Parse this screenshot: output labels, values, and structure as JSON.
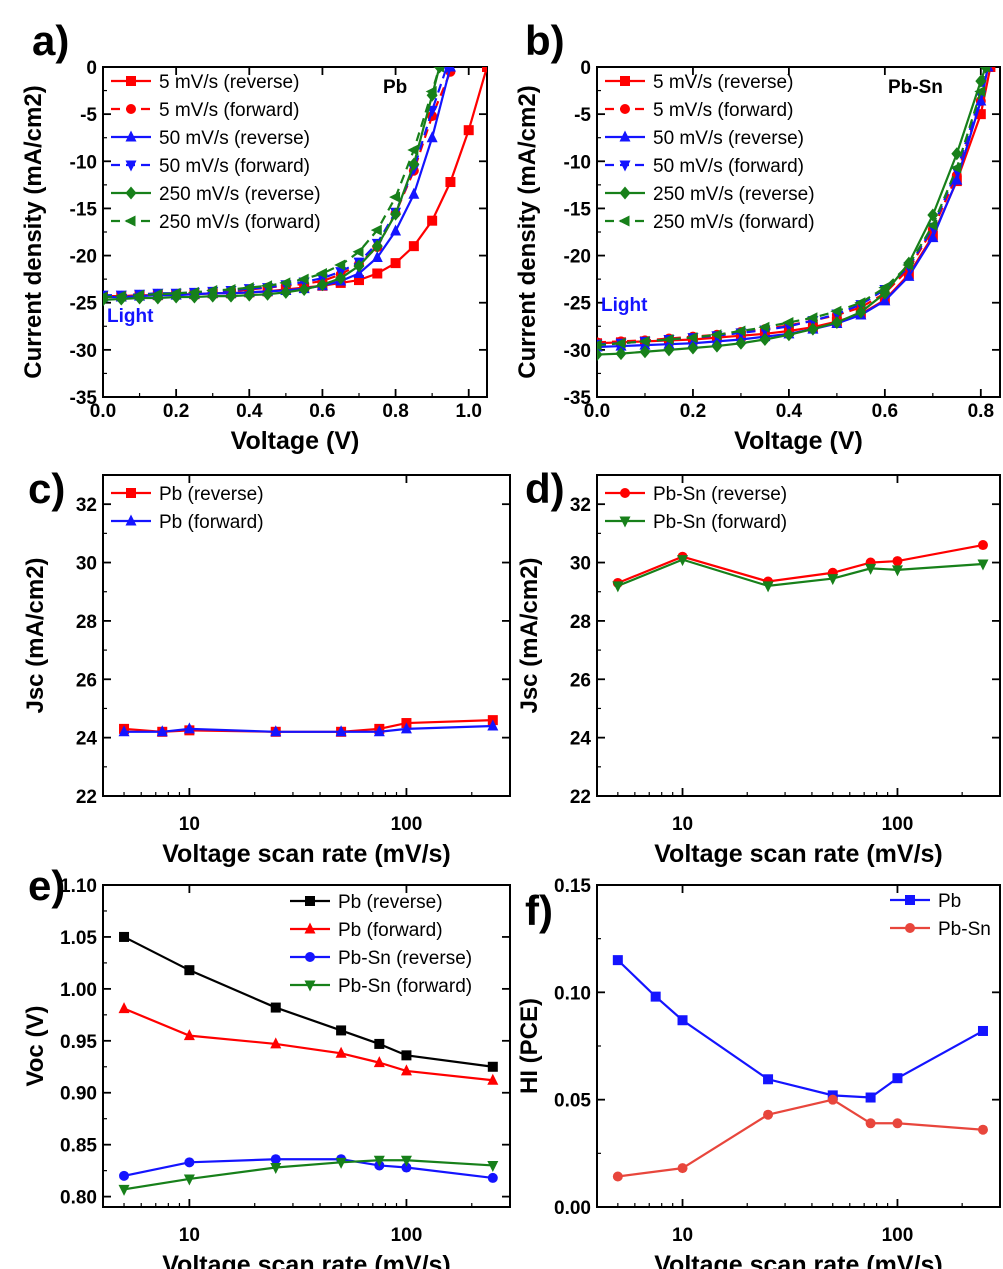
{
  "colors": {
    "red": "#ff0000",
    "blue": "#1414ff",
    "green": "#17801a",
    "black": "#000000",
    "salmon": "#e8463c"
  },
  "chart_data": [
    {
      "panel": "a)",
      "type": "line",
      "xscale": "linear",
      "xlim": [
        0,
        1.05
      ],
      "ylim": [
        -35,
        0
      ],
      "xticks": [
        0.0,
        0.2,
        0.4,
        0.6,
        0.8,
        1.0
      ],
      "xtick_labels": [
        "0.0",
        "0.2",
        "0.4",
        "0.6",
        "0.8",
        "1.0"
      ],
      "yticks": [
        -35,
        -30,
        -25,
        -20,
        -15,
        -10,
        -5,
        0
      ],
      "ytick_labels": [
        "-35",
        "-30",
        "-25",
        "-20",
        "-15",
        "-10",
        "-5",
        "0"
      ],
      "xlabel": "Voltage (V)",
      "ylabel": "Current density (mA/cm2)",
      "annotations": [
        {
          "text": "Pb",
          "color": "black"
        },
        {
          "text": "Light",
          "color": "blue"
        }
      ],
      "legend_position": "top-left",
      "series": [
        {
          "name": "5 mV/s (reverse)",
          "color": "red",
          "dash": false,
          "marker": "square",
          "x": [
            0,
            0.05,
            0.1,
            0.15,
            0.2,
            0.25,
            0.3,
            0.35,
            0.4,
            0.45,
            0.5,
            0.55,
            0.6,
            0.65,
            0.7,
            0.75,
            0.8,
            0.85,
            0.9,
            0.95,
            1.0,
            1.05
          ],
          "y": [
            -24.3,
            -24.3,
            -24.2,
            -24.2,
            -24.1,
            -24.1,
            -24.0,
            -24.0,
            -23.9,
            -23.8,
            -23.6,
            -23.4,
            -23.2,
            -22.9,
            -22.6,
            -21.9,
            -20.8,
            -19.0,
            -16.3,
            -12.2,
            -6.7,
            0
          ]
        },
        {
          "name": "5 mV/s (forward)",
          "color": "red",
          "dash": true,
          "marker": "circle",
          "x": [
            0,
            0.05,
            0.1,
            0.15,
            0.2,
            0.25,
            0.3,
            0.35,
            0.4,
            0.45,
            0.5,
            0.55,
            0.6,
            0.65,
            0.7,
            0.75,
            0.8,
            0.85,
            0.9,
            0.95
          ],
          "y": [
            -24.3,
            -24.3,
            -24.2,
            -24.2,
            -24.1,
            -24.0,
            -23.9,
            -23.8,
            -23.6,
            -23.4,
            -23.2,
            -23.0,
            -22.7,
            -22.0,
            -20.9,
            -19.1,
            -15.5,
            -11.0,
            -5.2,
            -0.5
          ]
        },
        {
          "name": "50 mV/s (reverse)",
          "color": "blue",
          "dash": false,
          "marker": "triangle-up",
          "x": [
            0,
            0.05,
            0.1,
            0.15,
            0.2,
            0.25,
            0.3,
            0.35,
            0.4,
            0.45,
            0.5,
            0.55,
            0.6,
            0.65,
            0.7,
            0.75,
            0.8,
            0.85,
            0.9,
            0.95
          ],
          "y": [
            -24.4,
            -24.4,
            -24.3,
            -24.2,
            -24.2,
            -24.1,
            -24.0,
            -24.0,
            -23.9,
            -23.8,
            -23.7,
            -23.5,
            -23.2,
            -22.7,
            -21.9,
            -20.2,
            -17.4,
            -13.5,
            -7.5,
            0
          ]
        },
        {
          "name": "50 mV/s (forward)",
          "color": "blue",
          "dash": true,
          "marker": "triangle-down",
          "x": [
            0,
            0.05,
            0.1,
            0.15,
            0.2,
            0.25,
            0.3,
            0.35,
            0.4,
            0.45,
            0.5,
            0.55,
            0.6,
            0.65,
            0.7,
            0.75,
            0.8,
            0.85,
            0.9,
            0.94
          ],
          "y": [
            -24.2,
            -24.2,
            -24.1,
            -24.0,
            -24.0,
            -23.9,
            -23.8,
            -23.7,
            -23.5,
            -23.4,
            -23.1,
            -22.8,
            -22.4,
            -21.7,
            -20.7,
            -18.7,
            -15.4,
            -10.8,
            -4.6,
            0
          ]
        },
        {
          "name": "250 mV/s (reverse)",
          "color": "green",
          "dash": false,
          "marker": "diamond",
          "x": [
            0,
            0.05,
            0.1,
            0.15,
            0.2,
            0.25,
            0.3,
            0.35,
            0.4,
            0.45,
            0.5,
            0.55,
            0.6,
            0.65,
            0.7,
            0.75,
            0.8,
            0.85,
            0.9,
            0.92
          ],
          "y": [
            -24.7,
            -24.6,
            -24.5,
            -24.5,
            -24.4,
            -24.4,
            -24.3,
            -24.3,
            -24.2,
            -24.1,
            -23.9,
            -23.6,
            -23.1,
            -22.4,
            -21.1,
            -19.0,
            -15.6,
            -10.3,
            -3.0,
            0
          ]
        },
        {
          "name": "250 mV/s (forward)",
          "color": "green",
          "dash": true,
          "marker": "triangle-left",
          "x": [
            0,
            0.05,
            0.1,
            0.15,
            0.2,
            0.25,
            0.3,
            0.35,
            0.4,
            0.45,
            0.5,
            0.55,
            0.6,
            0.65,
            0.7,
            0.75,
            0.8,
            0.85,
            0.9,
            0.92
          ],
          "y": [
            -24.4,
            -24.3,
            -24.2,
            -24.1,
            -24.0,
            -23.9,
            -23.7,
            -23.6,
            -23.4,
            -23.2,
            -22.9,
            -22.5,
            -21.9,
            -21.0,
            -19.6,
            -17.3,
            -13.8,
            -8.8,
            -2.6,
            0
          ]
        }
      ]
    },
    {
      "panel": "b)",
      "type": "line",
      "xscale": "linear",
      "xlim": [
        0,
        0.84
      ],
      "ylim": [
        -35,
        0
      ],
      "xticks": [
        0.0,
        0.2,
        0.4,
        0.6,
        0.8
      ],
      "xtick_labels": [
        "0.0",
        "0.2",
        "0.4",
        "0.6",
        "0.8"
      ],
      "yticks": [
        -35,
        -30,
        -25,
        -20,
        -15,
        -10,
        -5,
        0
      ],
      "ytick_labels": [
        "-35",
        "-30",
        "-25",
        "-20",
        "-15",
        "-10",
        "-5",
        "0"
      ],
      "xlabel": "Voltage (V)",
      "ylabel": "Current density (mA/cm2)",
      "annotations": [
        {
          "text": "Pb-Sn",
          "color": "black"
        },
        {
          "text": "Light",
          "color": "blue"
        }
      ],
      "legend_position": "top-left",
      "series": [
        {
          "name": "5 mV/s (reverse)",
          "color": "red",
          "dash": false,
          "marker": "square",
          "x": [
            0,
            0.05,
            0.1,
            0.15,
            0.2,
            0.25,
            0.3,
            0.35,
            0.4,
            0.45,
            0.5,
            0.55,
            0.6,
            0.65,
            0.7,
            0.75,
            0.8,
            0.82
          ],
          "y": [
            -29.3,
            -29.2,
            -29.1,
            -29.0,
            -28.9,
            -28.7,
            -28.5,
            -28.3,
            -28.0,
            -27.6,
            -27.0,
            -26.2,
            -24.7,
            -22.0,
            -17.9,
            -12.1,
            -5.0,
            0
          ]
        },
        {
          "name": "5 mV/s (forward)",
          "color": "red",
          "dash": true,
          "marker": "circle",
          "x": [
            0,
            0.05,
            0.1,
            0.15,
            0.2,
            0.25,
            0.3,
            0.35,
            0.4,
            0.45,
            0.5,
            0.55,
            0.6,
            0.65,
            0.7,
            0.75,
            0.8,
            0.815
          ],
          "y": [
            -29.2,
            -29.1,
            -29.0,
            -28.8,
            -28.6,
            -28.4,
            -28.1,
            -27.8,
            -27.4,
            -26.9,
            -26.3,
            -25.5,
            -24.0,
            -21.4,
            -17.2,
            -11.5,
            -3.6,
            0
          ]
        },
        {
          "name": "50 mV/s (reverse)",
          "color": "blue",
          "dash": false,
          "marker": "triangle-up",
          "x": [
            0,
            0.05,
            0.1,
            0.15,
            0.2,
            0.25,
            0.3,
            0.35,
            0.4,
            0.45,
            0.5,
            0.55,
            0.6,
            0.65,
            0.7,
            0.75,
            0.8,
            0.815
          ],
          "y": [
            -29.7,
            -29.6,
            -29.5,
            -29.4,
            -29.3,
            -29.1,
            -28.9,
            -28.6,
            -28.3,
            -27.8,
            -27.2,
            -26.3,
            -24.8,
            -22.2,
            -18.1,
            -12.0,
            -3.6,
            0
          ]
        },
        {
          "name": "50 mV/s (forward)",
          "color": "blue",
          "dash": true,
          "marker": "triangle-down",
          "x": [
            0,
            0.05,
            0.1,
            0.15,
            0.2,
            0.25,
            0.3,
            0.35,
            0.4,
            0.45,
            0.5,
            0.55,
            0.6,
            0.65,
            0.7,
            0.75,
            0.8,
            0.81
          ],
          "y": [
            -29.4,
            -29.3,
            -29.1,
            -28.9,
            -28.7,
            -28.5,
            -28.2,
            -27.9,
            -27.5,
            -26.9,
            -26.2,
            -25.2,
            -23.6,
            -21.2,
            -17.0,
            -11.0,
            -3.0,
            0
          ]
        },
        {
          "name": "250 mV/s (reverse)",
          "color": "green",
          "dash": false,
          "marker": "diamond",
          "x": [
            0,
            0.05,
            0.1,
            0.15,
            0.2,
            0.25,
            0.3,
            0.35,
            0.4,
            0.45,
            0.5,
            0.55,
            0.6,
            0.65,
            0.7,
            0.75,
            0.8,
            0.81
          ],
          "y": [
            -30.5,
            -30.4,
            -30.2,
            -30.0,
            -29.8,
            -29.6,
            -29.3,
            -28.9,
            -28.4,
            -27.8,
            -27.1,
            -26.0,
            -24.0,
            -20.8,
            -15.7,
            -9.2,
            -1.5,
            0
          ]
        },
        {
          "name": "250 mV/s (forward)",
          "color": "green",
          "dash": true,
          "marker": "triangle-left",
          "x": [
            0,
            0.05,
            0.1,
            0.15,
            0.2,
            0.25,
            0.3,
            0.35,
            0.4,
            0.45,
            0.5,
            0.55,
            0.6,
            0.65,
            0.7,
            0.75,
            0.8,
            0.81
          ],
          "y": [
            -29.5,
            -29.3,
            -29.1,
            -28.9,
            -28.7,
            -28.4,
            -28.0,
            -27.6,
            -27.1,
            -26.6,
            -25.9,
            -25.0,
            -23.4,
            -21.0,
            -16.8,
            -10.7,
            -2.6,
            0
          ]
        }
      ]
    },
    {
      "panel": "c)",
      "type": "line",
      "xscale": "log",
      "xlim": [
        4,
        300
      ],
      "ylim": [
        22,
        33
      ],
      "xticks": [
        10,
        100
      ],
      "xtick_labels": [
        "10",
        "100"
      ],
      "yticks": [
        22,
        24,
        26,
        28,
        30,
        32
      ],
      "ytick_labels": [
        "22",
        "24",
        "26",
        "28",
        "30",
        "32"
      ],
      "xlabel": "Voltage scan rate (mV/s)",
      "ylabel": "Jsc (mA/cm2)",
      "legend_position": "top-left",
      "x": [
        5,
        7.5,
        10,
        25,
        50,
        75,
        100,
        250
      ],
      "series": [
        {
          "name": "Pb (reverse)",
          "color": "red",
          "marker": "square",
          "values": [
            24.3,
            24.2,
            24.25,
            24.2,
            24.2,
            24.3,
            24.5,
            24.6
          ]
        },
        {
          "name": "Pb (forward)",
          "color": "blue",
          "marker": "triangle-up",
          "values": [
            24.2,
            24.2,
            24.3,
            24.2,
            24.2,
            24.2,
            24.3,
            24.4
          ]
        }
      ]
    },
    {
      "panel": "d)",
      "type": "line",
      "xscale": "log",
      "xlim": [
        4,
        300
      ],
      "ylim": [
        22,
        33
      ],
      "xticks": [
        10,
        100
      ],
      "xtick_labels": [
        "10",
        "100"
      ],
      "yticks": [
        22,
        24,
        26,
        28,
        30,
        32
      ],
      "ytick_labels": [
        "22",
        "24",
        "26",
        "28",
        "30",
        "32"
      ],
      "xlabel": "Voltage scan rate (mV/s)",
      "ylabel": "Jsc (mA/cm2)",
      "legend_position": "top-left",
      "x": [
        5,
        10,
        25,
        50,
        75,
        100,
        250
      ],
      "series": [
        {
          "name": "Pb-Sn (reverse)",
          "color": "red",
          "marker": "circle",
          "values": [
            29.3,
            30.2,
            29.35,
            29.65,
            30.0,
            30.05,
            30.6
          ]
        },
        {
          "name": "Pb-Sn (forward)",
          "color": "green",
          "marker": "triangle-down",
          "values": [
            29.2,
            30.1,
            29.2,
            29.45,
            29.8,
            29.75,
            29.95
          ]
        }
      ]
    },
    {
      "panel": "e)",
      "type": "line",
      "xscale": "log",
      "xlim": [
        4,
        300
      ],
      "ylim": [
        0.79,
        1.1
      ],
      "xticks": [
        10,
        100
      ],
      "xtick_labels": [
        "10",
        "100"
      ],
      "yticks": [
        0.8,
        0.85,
        0.9,
        0.95,
        1.0,
        1.05,
        1.1
      ],
      "ytick_labels": [
        "0.80",
        "0.85",
        "0.90",
        "0.95",
        "1.00",
        "1.05",
        "1.10"
      ],
      "xlabel": "Voltage scan rate (mV/s)",
      "ylabel": "Voc (V)",
      "legend_position": "top-right",
      "x": [
        5,
        10,
        25,
        50,
        75,
        100,
        250
      ],
      "series": [
        {
          "name": "Pb (reverse)",
          "color": "black",
          "marker": "square",
          "values": [
            1.05,
            1.018,
            0.982,
            0.96,
            0.947,
            0.936,
            0.925
          ]
        },
        {
          "name": "Pb (forward)",
          "color": "red",
          "marker": "triangle-up",
          "values": [
            0.981,
            0.955,
            0.947,
            0.938,
            0.929,
            0.921,
            0.912
          ]
        },
        {
          "name": "Pb-Sn (reverse)",
          "color": "blue",
          "marker": "circle",
          "values": [
            0.82,
            0.833,
            0.836,
            0.836,
            0.83,
            0.828,
            0.818
          ]
        },
        {
          "name": "Pb-Sn (forward)",
          "color": "green",
          "marker": "triangle-down",
          "values": [
            0.807,
            0.817,
            0.828,
            0.833,
            0.835,
            0.835,
            0.83
          ]
        }
      ]
    },
    {
      "panel": "f)",
      "type": "line",
      "xscale": "log",
      "xlim": [
        4,
        300
      ],
      "ylim": [
        0,
        0.15
      ],
      "xticks": [
        10,
        100
      ],
      "xtick_labels": [
        "10",
        "100"
      ],
      "yticks": [
        0.0,
        0.05,
        0.1,
        0.15
      ],
      "ytick_labels": [
        "0.00",
        "0.05",
        "0.10",
        "0.15"
      ],
      "xlabel": "Voltage scan rate (mV/s)",
      "ylabel": "HI (PCE)",
      "legend_position": "top-right",
      "x": [
        5,
        7.5,
        10,
        25,
        50,
        75,
        100,
        250
      ],
      "series": [
        {
          "name": "Pb",
          "color": "blue",
          "marker": "square",
          "values": [
            0.115,
            0.098,
            0.087,
            0.0595,
            0.052,
            0.051,
            0.06,
            0.082
          ]
        },
        {
          "name": "Pb-Sn",
          "color": "salmon",
          "marker": "circle",
          "values": [
            0.0142,
            null,
            0.0181,
            0.043,
            0.05,
            0.039,
            0.039,
            0.036
          ]
        }
      ]
    }
  ]
}
